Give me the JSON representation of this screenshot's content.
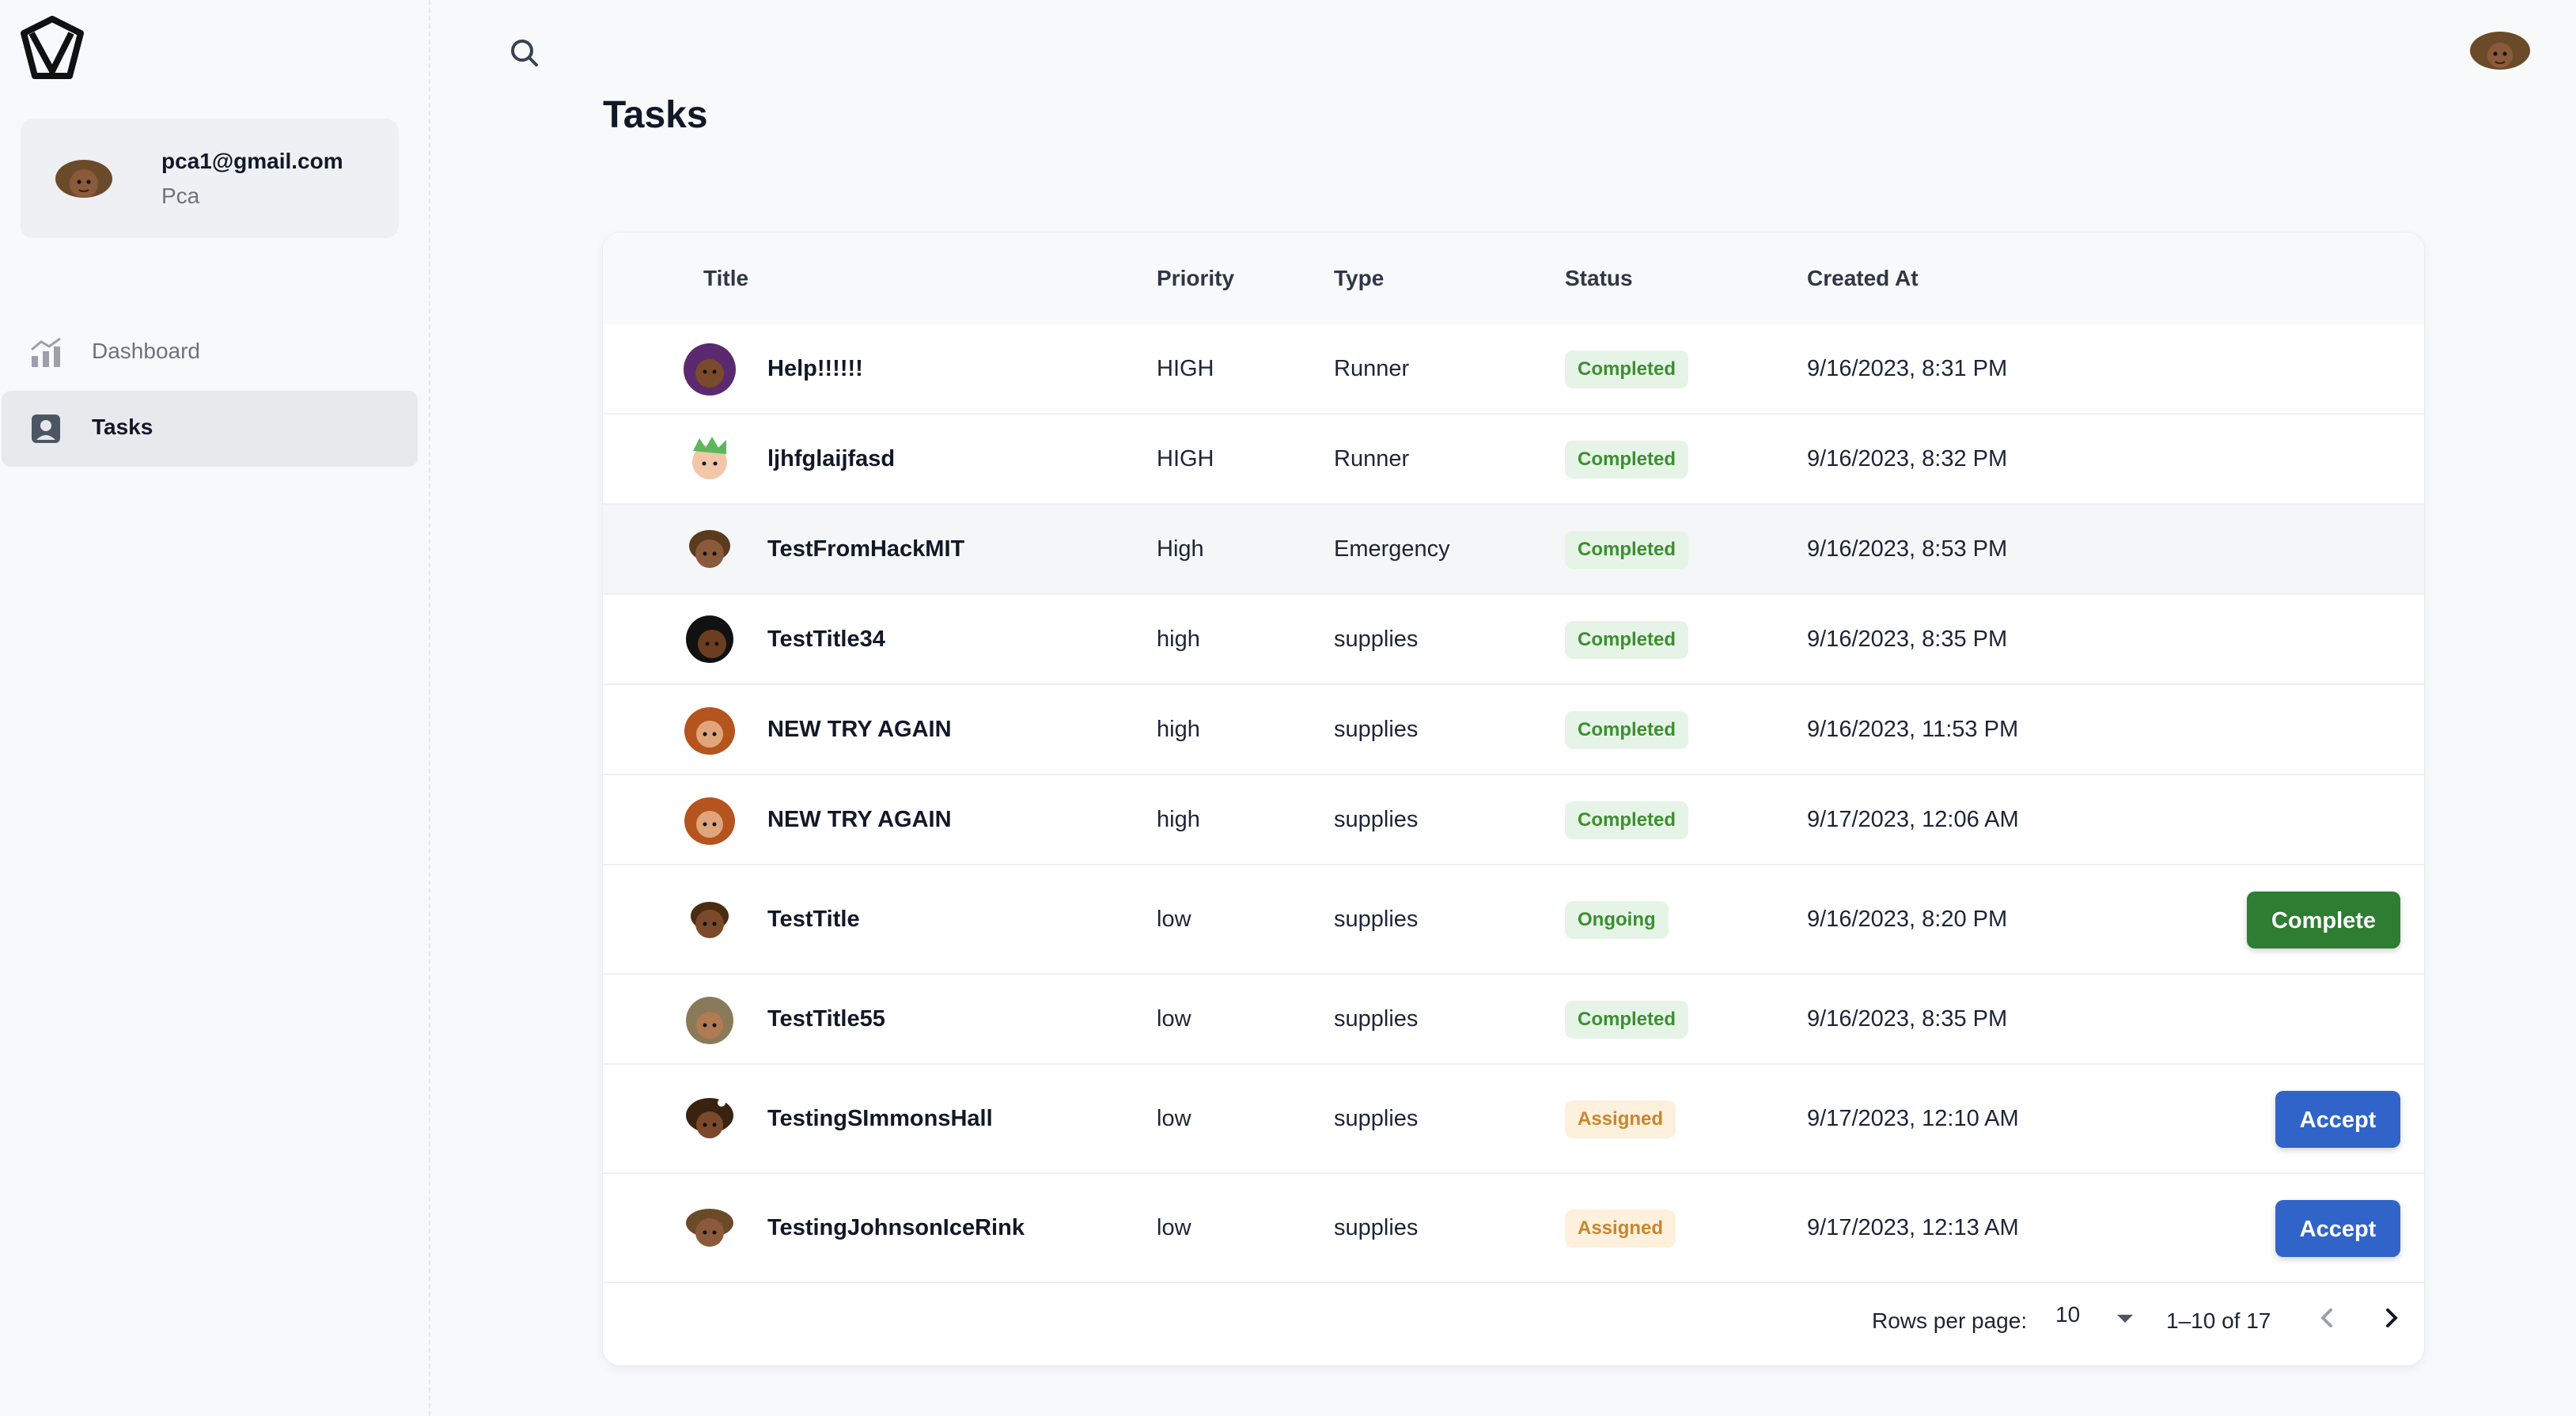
{
  "sidebar": {
    "user": {
      "email": "pca1@gmail.com",
      "role": "Pca"
    },
    "nav": [
      {
        "label": "Dashboard",
        "icon": "chart-icon"
      },
      {
        "label": "Tasks",
        "icon": "user-square-icon"
      }
    ]
  },
  "page": {
    "title": "Tasks"
  },
  "table": {
    "columns": [
      "Title",
      "Priority",
      "Type",
      "Status",
      "Created At"
    ],
    "rows": [
      {
        "title": "Help!!!!!!",
        "priority": "HIGH",
        "type": "Runner",
        "status": "Completed",
        "created": "9/16/2023, 8:31 PM",
        "action": ""
      },
      {
        "title": "ljhfglaijfasd",
        "priority": "HIGH",
        "type": "Runner",
        "status": "Completed",
        "created": "9/16/2023, 8:32 PM",
        "action": ""
      },
      {
        "title": "TestFromHackMIT",
        "priority": "High",
        "type": "Emergency",
        "status": "Completed",
        "created": "9/16/2023, 8:53 PM",
        "action": ""
      },
      {
        "title": "TestTitle34",
        "priority": "high",
        "type": "supplies",
        "status": "Completed",
        "created": "9/16/2023, 8:35 PM",
        "action": ""
      },
      {
        "title": "NEW TRY AGAIN",
        "priority": "high",
        "type": "supplies",
        "status": "Completed",
        "created": "9/16/2023, 11:53 PM",
        "action": ""
      },
      {
        "title": "NEW TRY AGAIN",
        "priority": "high",
        "type": "supplies",
        "status": "Completed",
        "created": "9/17/2023, 12:06 AM",
        "action": ""
      },
      {
        "title": "TestTitle",
        "priority": "low",
        "type": "supplies",
        "status": "Ongoing",
        "created": "9/16/2023, 8:20 PM",
        "action": "Complete"
      },
      {
        "title": "TestTitle55",
        "priority": "low",
        "type": "supplies",
        "status": "Completed",
        "created": "9/16/2023, 8:35 PM",
        "action": ""
      },
      {
        "title": "TestingSImmonsHall",
        "priority": "low",
        "type": "supplies",
        "status": "Assigned",
        "created": "9/17/2023, 12:10 AM",
        "action": "Accept"
      },
      {
        "title": "TestingJohnsonIceRink",
        "priority": "low",
        "type": "supplies",
        "status": "Assigned",
        "created": "9/17/2023, 12:13 AM",
        "action": "Accept"
      }
    ]
  },
  "pagination": {
    "rows_per_page_label": "Rows per page:",
    "rows_per_page": "10",
    "range": "1–10 of 17"
  },
  "colors": {
    "completed": "#3c8f2f",
    "assigned": "#c9862d",
    "complete_button": "#2e7d32",
    "accept_button": "#3064c9"
  }
}
